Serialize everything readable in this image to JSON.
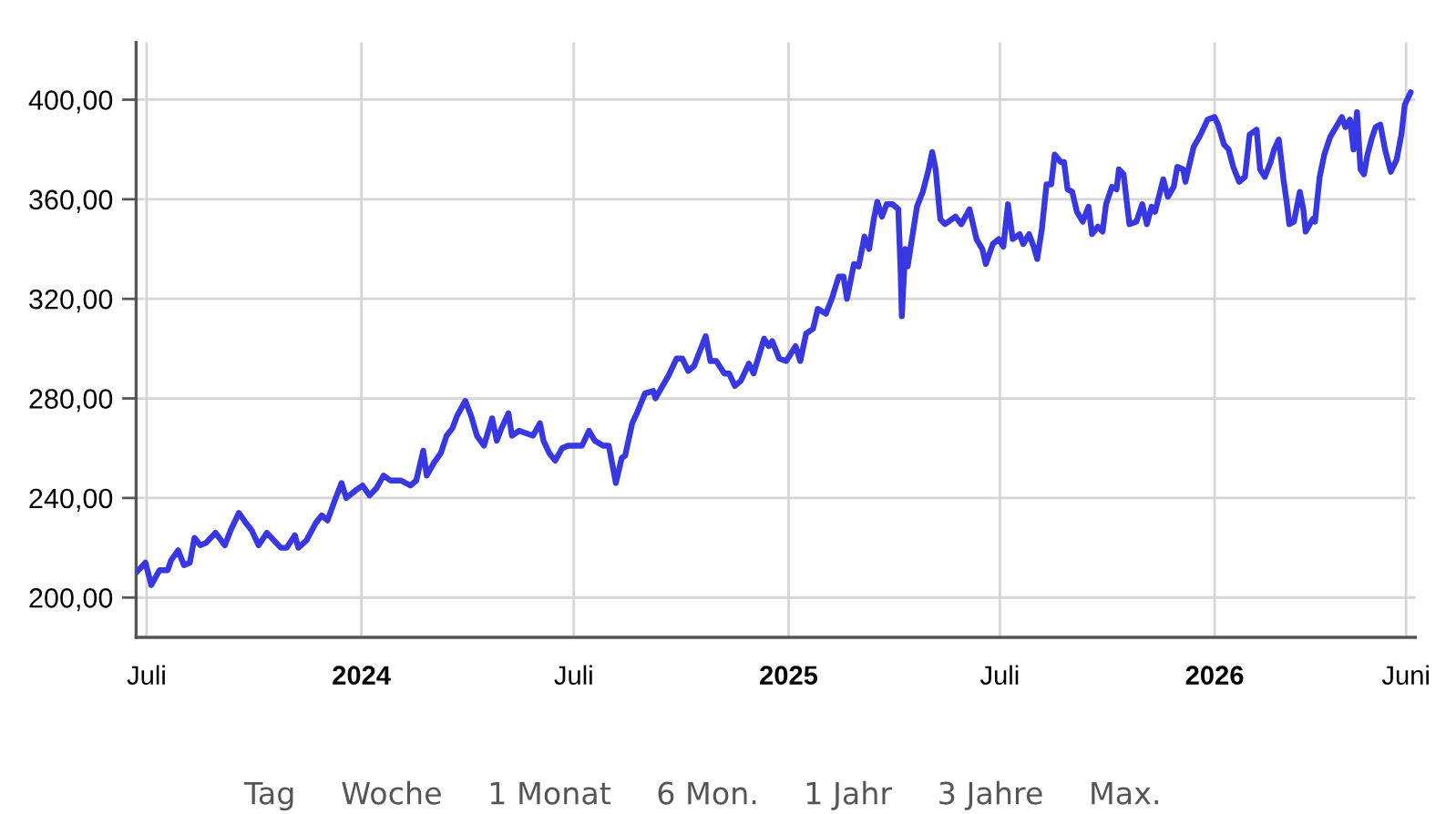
{
  "chart_data": {
    "type": "line",
    "x": [
      "2023-06-22",
      "2023-06-30",
      "2023-07-05",
      "2023-07-12",
      "2023-07-19",
      "2023-07-22",
      "2023-07-28",
      "2023-08-02",
      "2023-08-07",
      "2023-08-11",
      "2023-08-16",
      "2023-08-21",
      "2023-08-29",
      "2023-09-06",
      "2023-09-11",
      "2023-09-18",
      "2023-09-24",
      "2023-09-29",
      "2023-10-05",
      "2023-10-12",
      "2023-10-18",
      "2023-10-24",
      "2023-10-29",
      "2023-11-05",
      "2023-11-08",
      "2023-11-15",
      "2023-11-23",
      "2023-11-28",
      "2023-12-03",
      "2023-12-10",
      "2023-12-15",
      "2023-12-19",
      "2023-12-27",
      "2024-01-02",
      "2024-01-08",
      "2024-01-14",
      "2024-01-20",
      "2024-01-26",
      "2024-02-04",
      "2024-02-12",
      "2024-02-17",
      "2024-02-23",
      "2024-02-26",
      "2024-03-03",
      "2024-03-09",
      "2024-03-14",
      "2024-03-19",
      "2024-03-23",
      "2024-03-30",
      "2024-04-04",
      "2024-04-09",
      "2024-04-15",
      "2024-04-22",
      "2024-04-26",
      "2024-04-30",
      "2024-05-06",
      "2024-05-09",
      "2024-05-15",
      "2024-05-21",
      "2024-05-27",
      "2024-06-02",
      "2024-06-05",
      "2024-06-10",
      "2024-06-15",
      "2024-06-21",
      "2024-06-26",
      "2024-07-01",
      "2024-07-08",
      "2024-07-14",
      "2024-07-19",
      "2024-07-26",
      "2024-07-31",
      "2024-08-06",
      "2024-08-11",
      "2024-08-14",
      "2024-08-20",
      "2024-08-24",
      "2024-08-31",
      "2024-09-07",
      "2024-09-09",
      "2024-09-15",
      "2024-09-20",
      "2024-09-27",
      "2024-10-02",
      "2024-10-07",
      "2024-10-12",
      "2024-10-22",
      "2024-10-26",
      "2024-10-31",
      "2024-11-07",
      "2024-11-11",
      "2024-11-16",
      "2024-11-21",
      "2024-11-28",
      "2024-12-02",
      "2024-12-11",
      "2024-12-15",
      "2024-12-18",
      "2024-12-24",
      "2024-12-30",
      "2025-01-07",
      "2025-01-11",
      "2025-01-16",
      "2025-01-22",
      "2025-01-26",
      "2025-02-02",
      "2025-02-07",
      "2025-02-13",
      "2025-02-17",
      "2025-02-20",
      "2025-02-26",
      "2025-03-02",
      "2025-03-07",
      "2025-03-11",
      "2025-03-15",
      "2025-03-18",
      "2025-03-22",
      "2025-03-26",
      "2025-03-31",
      "2025-04-05",
      "2025-04-07",
      "2025-04-08",
      "2025-04-11",
      "2025-04-13",
      "2025-04-17",
      "2025-04-21",
      "2025-04-26",
      "2025-05-01",
      "2025-05-04",
      "2025-05-07",
      "2025-05-11",
      "2025-05-15",
      "2025-05-18",
      "2025-05-24",
      "2025-05-29",
      "2025-06-05",
      "2025-06-11",
      "2025-06-16",
      "2025-06-19",
      "2025-06-25",
      "2025-06-30",
      "2025-07-04",
      "2025-07-08",
      "2025-07-12",
      "2025-07-18",
      "2025-07-21",
      "2025-07-26",
      "2025-07-30",
      "2025-08-02",
      "2025-08-06",
      "2025-08-10",
      "2025-08-14",
      "2025-08-17",
      "2025-08-22",
      "2025-08-25",
      "2025-08-28",
      "2025-09-01",
      "2025-09-05",
      "2025-09-10",
      "2025-09-15",
      "2025-09-18",
      "2025-09-23",
      "2025-09-27",
      "2025-09-30",
      "2025-10-05",
      "2025-10-09",
      "2025-10-11",
      "2025-10-15",
      "2025-10-20",
      "2025-10-26",
      "2025-10-31",
      "2025-11-04",
      "2025-11-08",
      "2025-11-11",
      "2025-11-18",
      "2025-11-22",
      "2025-11-27",
      "2025-11-30",
      "2025-12-05",
      "2025-12-07",
      "2025-12-11",
      "2025-12-14",
      "2025-12-19",
      "2025-12-26",
      "2026-01-01",
      "2026-01-04",
      "2026-01-09",
      "2026-01-13",
      "2026-01-17",
      "2026-01-22",
      "2026-01-27",
      "2026-01-31",
      "2026-02-06",
      "2026-02-09",
      "2026-02-13",
      "2026-02-18",
      "2026-02-21",
      "2026-02-25",
      "2026-03-01",
      "2026-03-04",
      "2026-03-06",
      "2026-03-10",
      "2026-03-15",
      "2026-03-18",
      "2026-03-20",
      "2026-03-26",
      "2026-03-28",
      "2026-04-01",
      "2026-04-05",
      "2026-04-10",
      "2026-04-15",
      "2026-04-20",
      "2026-04-23",
      "2026-04-27",
      "2026-04-30",
      "2026-05-03",
      "2026-05-06",
      "2026-05-09",
      "2026-05-12",
      "2026-05-16",
      "2026-05-19",
      "2026-05-23",
      "2026-05-27",
      "2026-06-01",
      "2026-06-06",
      "2026-06-10",
      "2026-06-13",
      "2026-06-18"
    ],
    "series": [
      {
        "color": "#3838e2",
        "values": [
          210,
          214,
          205,
          211,
          211,
          215,
          219,
          213,
          214,
          224,
          221,
          222,
          226,
          221,
          227,
          234,
          230,
          227,
          221,
          226,
          223,
          220,
          220,
          225,
          220,
          223,
          230,
          233,
          231,
          240,
          246,
          240,
          243,
          245,
          241,
          244,
          249,
          247,
          247,
          245,
          247,
          259,
          249,
          254,
          258,
          265,
          268,
          273,
          279,
          273,
          265,
          261,
          272,
          263,
          268,
          274,
          265,
          267,
          266,
          265,
          270,
          263,
          258,
          255,
          260,
          261,
          261,
          261,
          267,
          263,
          261,
          261,
          246,
          256,
          257,
          270,
          274,
          282,
          283,
          280,
          285,
          289,
          296,
          296,
          291,
          293,
          305,
          295,
          295,
          290,
          290,
          285,
          287,
          294,
          290,
          304,
          301,
          303,
          296,
          295,
          301,
          295,
          306,
          308,
          316,
          314,
          320,
          329,
          329,
          320,
          334,
          333,
          345,
          340,
          352,
          359,
          353,
          358,
          358,
          356,
          331,
          313,
          340,
          333,
          345,
          357,
          363,
          372,
          379,
          372,
          352,
          350,
          351,
          353,
          350,
          356,
          344,
          340,
          334,
          342,
          344,
          341,
          358,
          344,
          346,
          342,
          346,
          341,
          336,
          348,
          366,
          366,
          378,
          375,
          375,
          364,
          363,
          355,
          351,
          357,
          346,
          349,
          347,
          358,
          365,
          364,
          372,
          370,
          350,
          351,
          358,
          350,
          357,
          355,
          368,
          361,
          365,
          373,
          372,
          367,
          375,
          381,
          385,
          392,
          393,
          390,
          382,
          380,
          373,
          367,
          369,
          386,
          388,
          372,
          369,
          375,
          380,
          384,
          368,
          358,
          350,
          351,
          363,
          356,
          347,
          352,
          351,
          369,
          378,
          385,
          389,
          393,
          389,
          392,
          380,
          395,
          372,
          370,
          378,
          385,
          389,
          390,
          380,
          371,
          376,
          386,
          398,
          403
        ]
      }
    ],
    "line_style": "solid",
    "xlim": [
      "2023-06-22",
      "2026-06-22"
    ],
    "ylim": [
      184,
      423
    ],
    "xticks": [
      {
        "value": "2023-07-01",
        "label": "Juli"
      },
      {
        "value": "2024-01-01",
        "label": "2024"
      },
      {
        "value": "2024-07-01",
        "label": "Juli"
      },
      {
        "value": "2025-01-01",
        "label": "2025"
      },
      {
        "value": "2025-07-01",
        "label": "Juli"
      },
      {
        "value": "2026-01-01",
        "label": "2026"
      },
      {
        "value": "2026-06-14",
        "label": "Juni"
      }
    ],
    "yticks": [
      {
        "value": 200,
        "label": "200,00"
      },
      {
        "value": 240,
        "label": "240,00"
      },
      {
        "value": 280,
        "label": "280,00"
      },
      {
        "value": 320,
        "label": "320,00"
      },
      {
        "value": 360,
        "label": "360,00"
      },
      {
        "value": 400,
        "label": "400,00"
      }
    ],
    "grid": true,
    "annotations": [
      "Tag",
      "Woche",
      "1 Monat",
      "6 Mon.",
      "1 Jahr",
      "3 Jahre",
      "Max."
    ]
  }
}
